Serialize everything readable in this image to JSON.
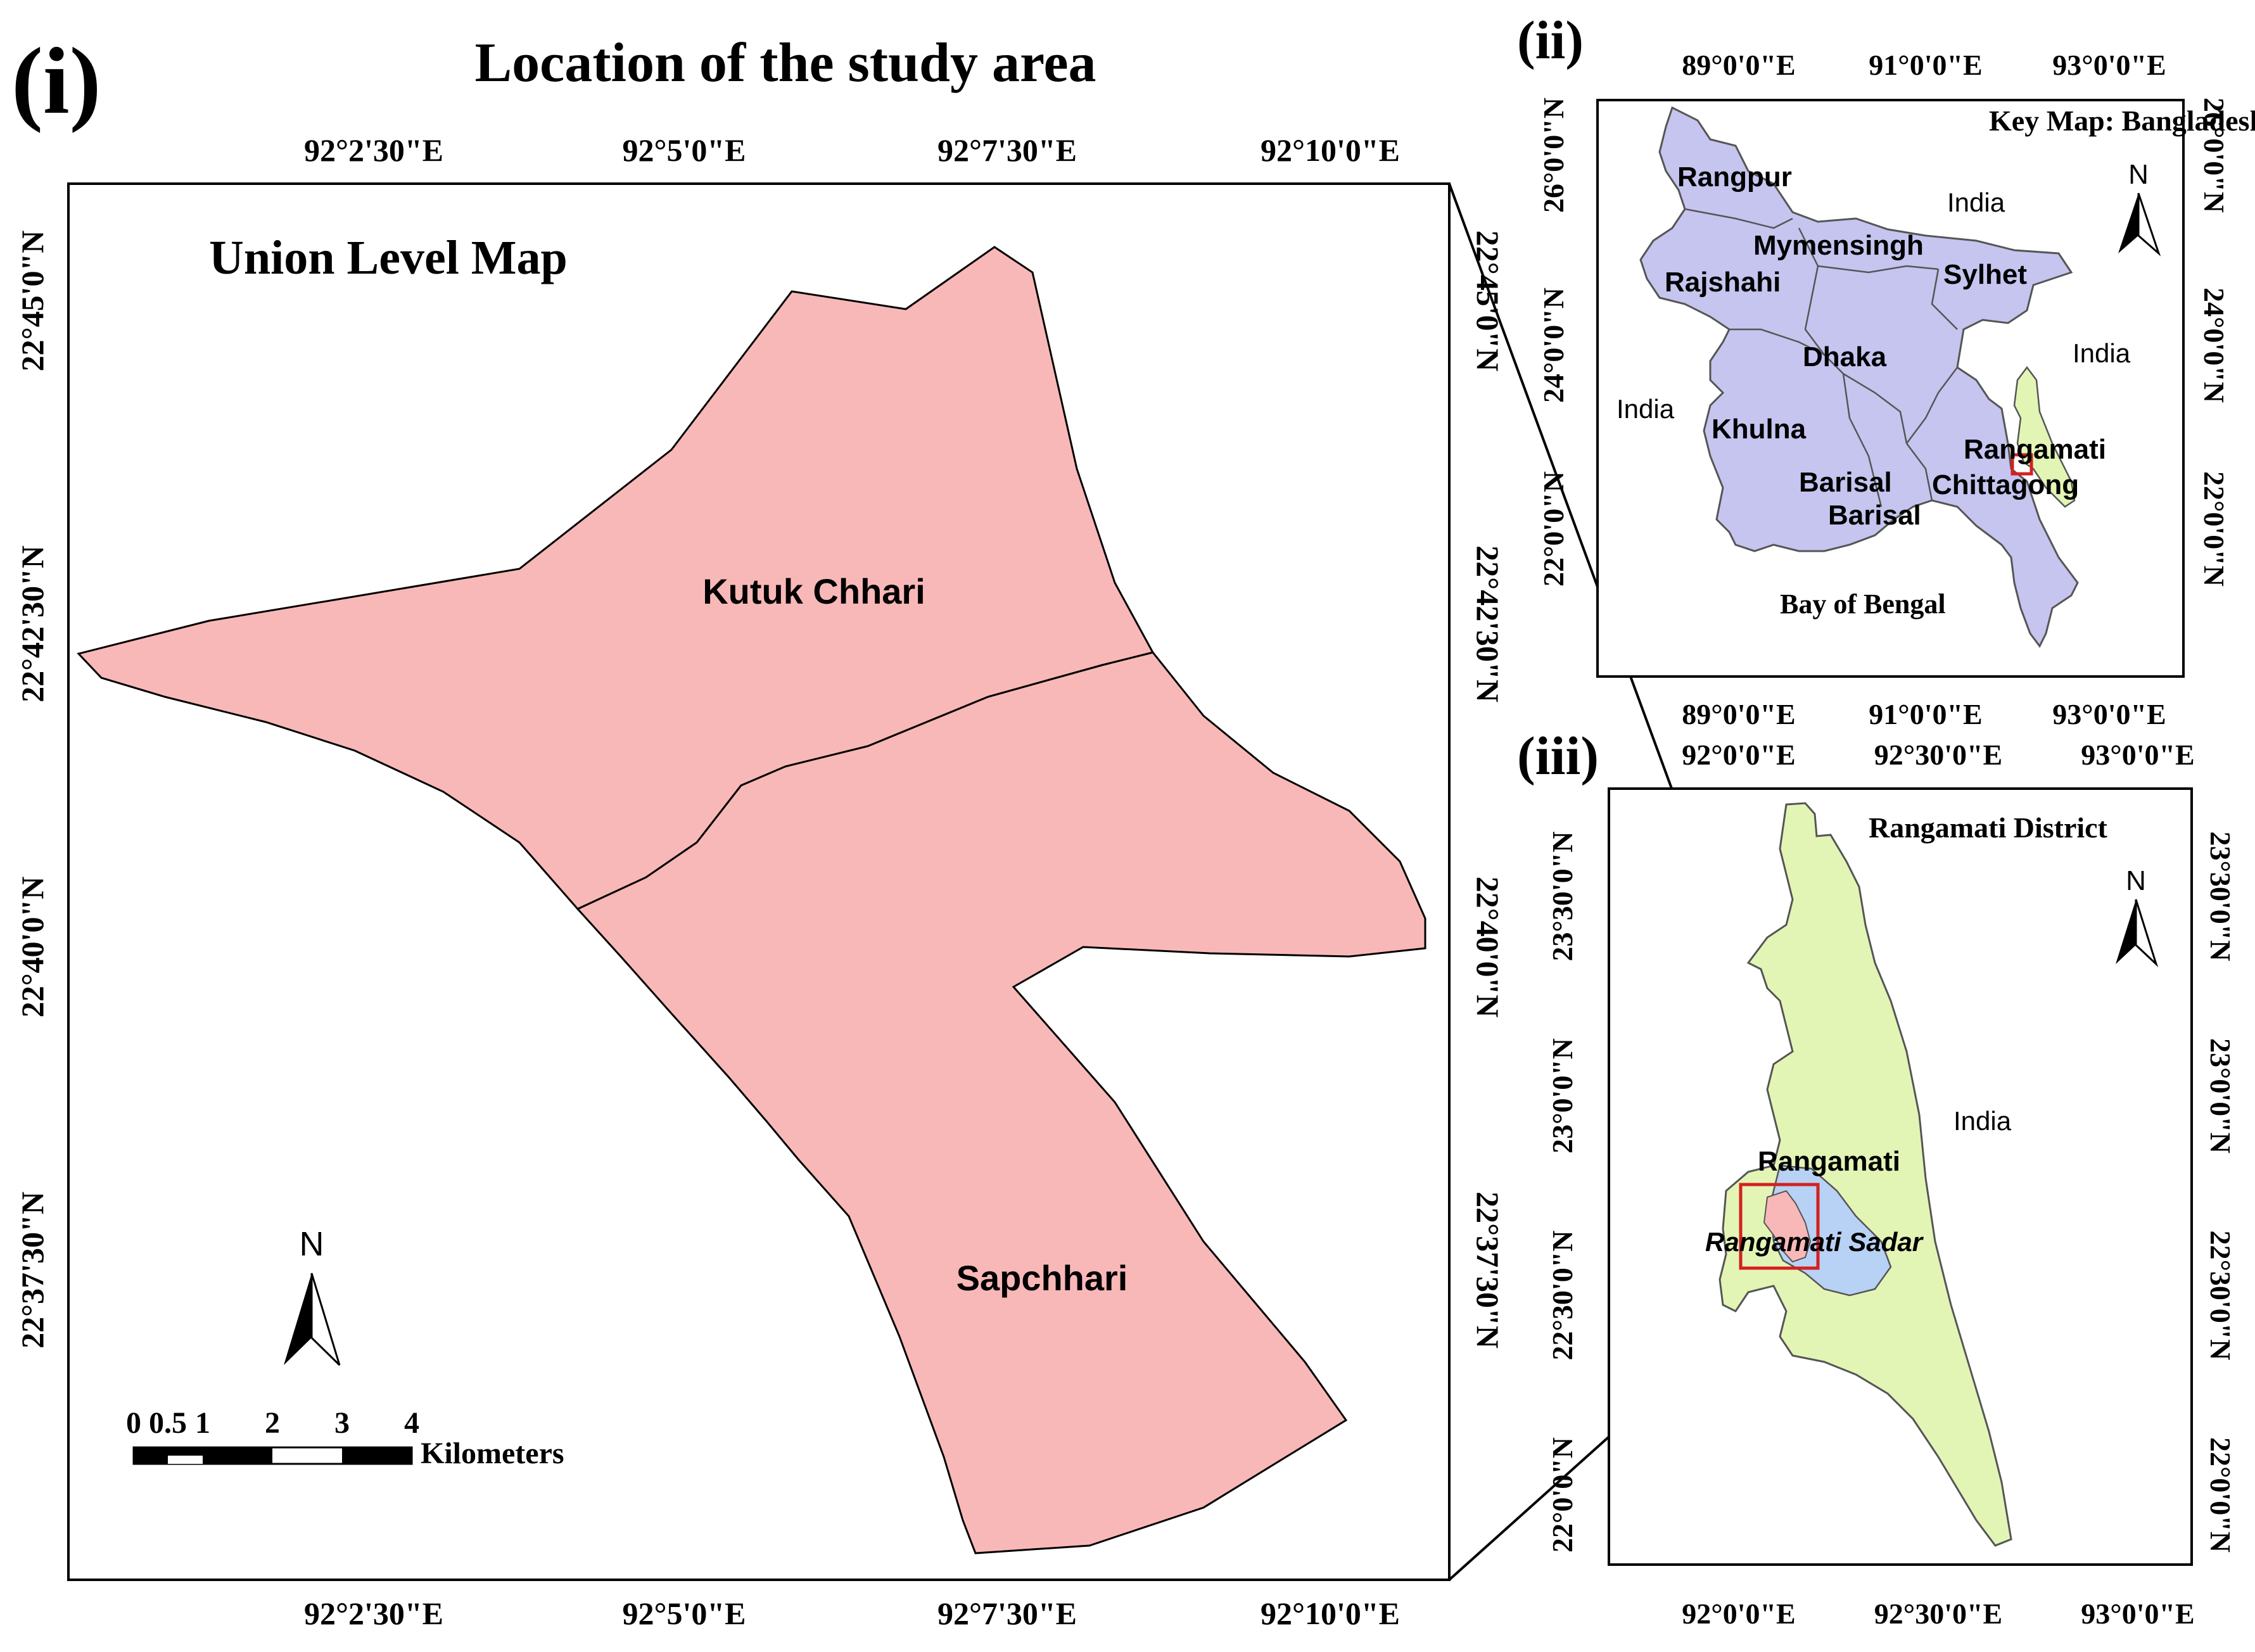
{
  "panel_i": {
    "panel_label": "(i)",
    "title": "Location of the study area",
    "subtitle": "Union Level Map",
    "top_lon_ticks": [
      "92°2'30\"E",
      "92°5'0\"E",
      "92°7'30\"E",
      "92°10'0\"E"
    ],
    "bottom_lon_ticks": [
      "92°2'30\"E",
      "92°5'0\"E",
      "92°7'30\"E",
      "92°10'0\"E"
    ],
    "left_lat_ticks": [
      "22°45'0\"N",
      "22°42'30\"N",
      "22°40'0\"N",
      "22°37'30\"N"
    ],
    "right_lat_ticks": [
      "22°45'0\"N",
      "22°42'30\"N",
      "22°40'0\"N",
      "22°37'30\"N"
    ],
    "unions": [
      {
        "name": "Kutuk Chhari",
        "color": "#f9b8b8"
      },
      {
        "name": "Sapchhari",
        "color": "#f9b8b8"
      }
    ],
    "north_arrow": "N",
    "scale_bar": {
      "tick_labels": [
        "0",
        "0.5",
        "1",
        "2",
        "3",
        "4"
      ],
      "units": "Kilometers"
    }
  },
  "panel_ii": {
    "panel_label": "(ii)",
    "title": "Key Map: Bangladesh",
    "top_lon_ticks": [
      "89°0'0\"E",
      "91°0'0\"E",
      "93°0'0\"E"
    ],
    "bottom_lon_ticks": [
      "89°0'0\"E",
      "91°0'0\"E",
      "93°0'0\"E"
    ],
    "left_lat_ticks": [
      "26°0'0\"N",
      "24°0'0\"N",
      "22°0'0\"N"
    ],
    "right_lat_ticks": [
      "26°0'0\"N",
      "24°0'0\"N",
      "22°0'0\"N"
    ],
    "divisions": [
      "Rangpur",
      "Mymensingh",
      "Sylhet",
      "Rajshahi",
      "Dhaka",
      "Khulna",
      "Barisal",
      "Barisal",
      "Chittagong",
      "Rangamati"
    ],
    "places": [
      "India",
      "India",
      "India",
      "Bay of Bengal"
    ],
    "north_arrow": "N",
    "colors": {
      "country": "#c5c5f0",
      "district": "#e3f5b5",
      "highlight_box": "#d42020"
    }
  },
  "panel_iii": {
    "panel_label": "(iii)",
    "title": "Rangamati District",
    "top_lon_ticks": [
      "92°0'0\"E",
      "92°30'0\"E",
      "93°0'0\"E"
    ],
    "bottom_lon_ticks": [
      "92°0'0\"E",
      "92°30'0\"E",
      "93°0'0\"E"
    ],
    "left_lat_ticks": [
      "23°30'0\"N",
      "23°0'0\"N",
      "22°30'0\"N",
      "22°0'0\"N"
    ],
    "right_lat_ticks": [
      "23°30'0\"N",
      "23°0'0\"N",
      "22°30'0\"N",
      "22°0'0\"N"
    ],
    "labels": {
      "district": "Rangamati",
      "upazila": "Rangamati Sadar",
      "neighbor": "India"
    },
    "north_arrow": "N",
    "colors": {
      "district": "#e3f5b5",
      "sadar": "#b8d2f5",
      "study_area": "#f9b8b8"
    }
  }
}
